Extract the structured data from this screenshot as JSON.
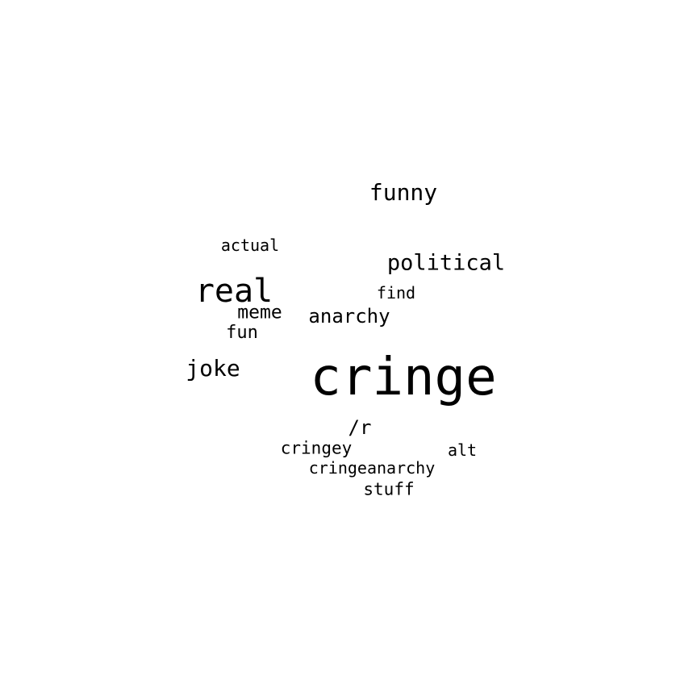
{
  "word_cloud": {
    "words": {
      "cringe": "cringe",
      "real": "real",
      "funny": "funny",
      "political": "political",
      "joke": "joke",
      "anarchy": "anarchy",
      "meme": "meme",
      "find": "find",
      "actual": "actual",
      "fun": "fun",
      "r": "/r",
      "cringey": "cringey",
      "alt": "alt",
      "cringeanarchy": "cringeanarchy",
      "stuff": "stuff"
    },
    "colors": {
      "text": "#000000",
      "background": "#ffffff"
    }
  }
}
